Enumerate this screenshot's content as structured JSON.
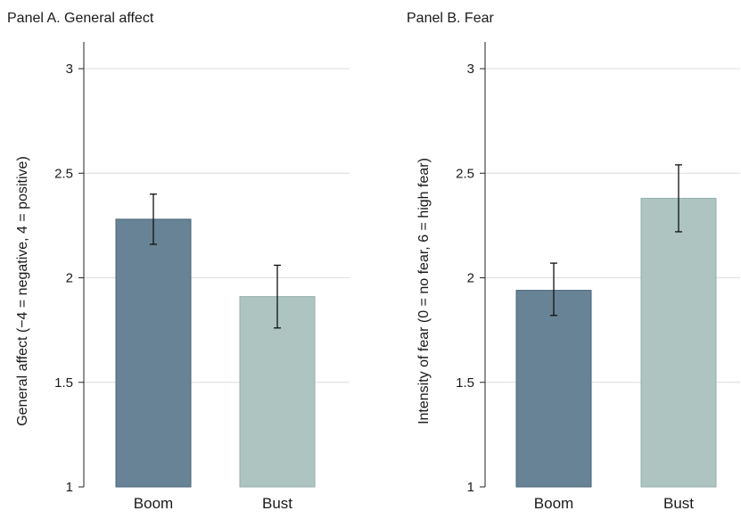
{
  "chart_data": [
    {
      "type": "bar",
      "title": "Panel A. General affect",
      "ylabel": "General affect (−4 = negative, 4 = positive)",
      "xlabel": "",
      "categories": [
        "Boom",
        "Bust"
      ],
      "values": [
        2.28,
        1.91
      ],
      "error_low": [
        2.16,
        1.76
      ],
      "error_high": [
        2.4,
        2.06
      ],
      "ylim": [
        1,
        3
      ],
      "yticks": [
        1,
        1.5,
        2,
        2.5,
        3
      ],
      "ytick_labels": [
        "1",
        "1.5",
        "2",
        "2.5",
        "3"
      ],
      "grid": true,
      "bar_colors": [
        "#688396",
        "#adc4c0"
      ]
    },
    {
      "type": "bar",
      "title": "Panel B. Fear",
      "ylabel": "Intensity of fear (0 = no fear, 6 = high fear)",
      "xlabel": "",
      "categories": [
        "Boom",
        "Bust"
      ],
      "values": [
        1.94,
        2.38
      ],
      "error_low": [
        1.82,
        2.22
      ],
      "error_high": [
        2.07,
        2.54
      ],
      "ylim": [
        1,
        3
      ],
      "yticks": [
        1,
        1.5,
        2,
        2.5,
        3
      ],
      "ytick_labels": [
        "1",
        "1.5",
        "2",
        "2.5",
        "3"
      ],
      "grid": true,
      "bar_colors": [
        "#688396",
        "#adc4c0"
      ]
    }
  ]
}
